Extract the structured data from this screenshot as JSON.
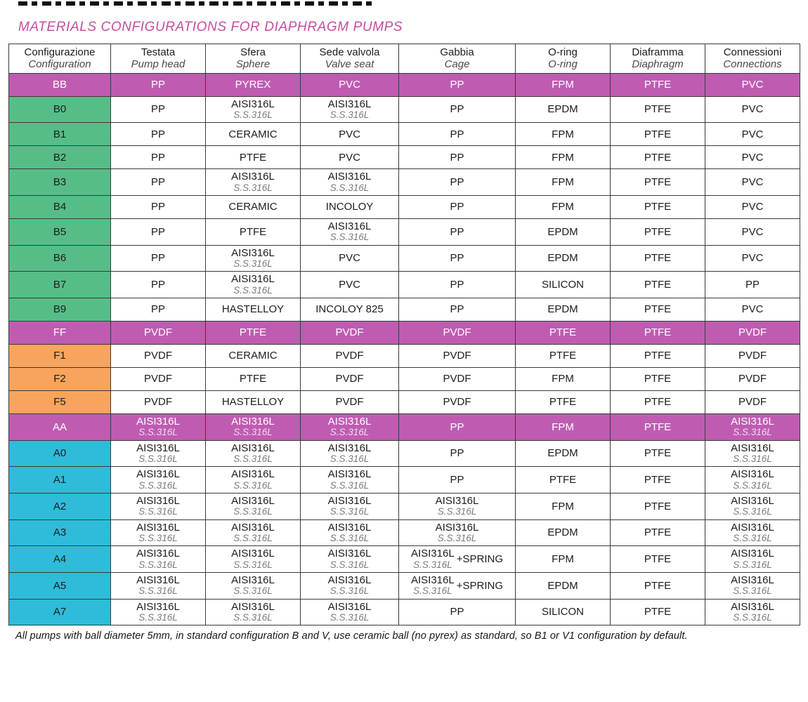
{
  "page": {
    "title": "MATERIALS CONFIGURATIONS FOR DIAPHRAGM PUMPS",
    "footnote": "All pumps with ball diameter 5mm, in standard configuration B and V, use ceramic ball (no pyrex) as standard, so B1 or V1 configuration by default."
  },
  "colors": {
    "magenta": "#bf5cb2",
    "green": "#57bd88",
    "orange": "#f8a45c",
    "cyan": "#2fbcd9",
    "title": "#c54da0"
  },
  "table": {
    "headers": [
      {
        "it": "Configurazione",
        "en": "Configuration"
      },
      {
        "it": "Testata",
        "en": "Pump head"
      },
      {
        "it": "Sfera",
        "en": "Sphere"
      },
      {
        "it": "Sede valvola",
        "en": "Valve seat"
      },
      {
        "it": "Gabbia",
        "en": "Cage"
      },
      {
        "it": "O-ring",
        "en": "O-ring"
      },
      {
        "it": "Diaframma",
        "en": "Diaphragm"
      },
      {
        "it": "Connessioni",
        "en": "Connections"
      }
    ],
    "rows": [
      {
        "code": "BB",
        "style": "magenta",
        "cells": [
          "PP",
          "PYREX",
          "PVC",
          "PP",
          "FPM",
          "PTFE",
          "PVC"
        ]
      },
      {
        "code": "B0",
        "style": "green",
        "cells": [
          "PP",
          {
            "main": "AISI316L",
            "sub": "S.S.316L"
          },
          {
            "main": "AISI316L",
            "sub": "S.S.316L"
          },
          "PP",
          "EPDM",
          "PTFE",
          "PVC"
        ]
      },
      {
        "code": "B1",
        "style": "green",
        "cells": [
          "PP",
          "CERAMIC",
          "PVC",
          "PP",
          "FPM",
          "PTFE",
          "PVC"
        ]
      },
      {
        "code": "B2",
        "style": "green",
        "cells": [
          "PP",
          "PTFE",
          "PVC",
          "PP",
          "FPM",
          "PTFE",
          "PVC"
        ]
      },
      {
        "code": "B3",
        "style": "green",
        "cells": [
          "PP",
          {
            "main": "AISI316L",
            "sub": "S.S.316L"
          },
          {
            "main": "AISI316L",
            "sub": "S.S.316L"
          },
          "PP",
          "FPM",
          "PTFE",
          "PVC"
        ]
      },
      {
        "code": "B4",
        "style": "green",
        "cells": [
          "PP",
          "CERAMIC",
          "INCOLOY",
          "PP",
          "FPM",
          "PTFE",
          "PVC"
        ]
      },
      {
        "code": "B5",
        "style": "green",
        "cells": [
          "PP",
          "PTFE",
          {
            "main": "AISI316L",
            "sub": "S.S.316L"
          },
          "PP",
          "EPDM",
          "PTFE",
          "PVC"
        ]
      },
      {
        "code": "B6",
        "style": "green",
        "cells": [
          "PP",
          {
            "main": "AISI316L",
            "sub": "S.S.316L"
          },
          "PVC",
          "PP",
          "EPDM",
          "PTFE",
          "PVC"
        ]
      },
      {
        "code": "B7",
        "style": "green",
        "cells": [
          "PP",
          {
            "main": "AISI316L",
            "sub": "S.S.316L"
          },
          "PVC",
          "PP",
          "SILICON",
          "PTFE",
          "PP"
        ]
      },
      {
        "code": "B9",
        "style": "green",
        "cells": [
          "PP",
          "HASTELLOY",
          "INCOLOY 825",
          "PP",
          "EPDM",
          "PTFE",
          "PVC"
        ]
      },
      {
        "code": "FF",
        "style": "magenta",
        "cells": [
          "PVDF",
          "PTFE",
          "PVDF",
          "PVDF",
          "PTFE",
          "PTFE",
          "PVDF"
        ]
      },
      {
        "code": "F1",
        "style": "orange",
        "cells": [
          "PVDF",
          "CERAMIC",
          "PVDF",
          "PVDF",
          "PTFE",
          "PTFE",
          "PVDF"
        ]
      },
      {
        "code": "F2",
        "style": "orange",
        "cells": [
          "PVDF",
          "PTFE",
          "PVDF",
          "PVDF",
          "FPM",
          "PTFE",
          "PVDF"
        ]
      },
      {
        "code": "F5",
        "style": "orange",
        "cells": [
          "PVDF",
          "HASTELLOY",
          "PVDF",
          "PVDF",
          "PTFE",
          "PTFE",
          "PVDF"
        ]
      },
      {
        "code": "AA",
        "style": "magenta",
        "cells": [
          {
            "main": "AISI316L",
            "sub": "S.S.316L"
          },
          {
            "main": "AISI316L",
            "sub": "S.S.316L"
          },
          {
            "main": "AISI316L",
            "sub": "S.S.316L"
          },
          "PP",
          "FPM",
          "PTFE",
          {
            "main": "AISI316L",
            "sub": "S.S.316L"
          }
        ]
      },
      {
        "code": "A0",
        "style": "cyan",
        "cells": [
          {
            "main": "AISI316L",
            "sub": "S.S.316L"
          },
          {
            "main": "AISI316L",
            "sub": "S.S.316L"
          },
          {
            "main": "AISI316L",
            "sub": "S.S.316L"
          },
          "PP",
          "EPDM",
          "PTFE",
          {
            "main": "AISI316L",
            "sub": "S.S.316L"
          }
        ]
      },
      {
        "code": "A1",
        "style": "cyan",
        "cells": [
          {
            "main": "AISI316L",
            "sub": "S.S.316L"
          },
          {
            "main": "AISI316L",
            "sub": "S.S.316L"
          },
          {
            "main": "AISI316L",
            "sub": "S.S.316L"
          },
          "PP",
          "PTFE",
          "PTFE",
          {
            "main": "AISI316L",
            "sub": "S.S.316L"
          }
        ]
      },
      {
        "code": "A2",
        "style": "cyan",
        "cells": [
          {
            "main": "AISI316L",
            "sub": "S.S.316L"
          },
          {
            "main": "AISI316L",
            "sub": "S.S.316L"
          },
          {
            "main": "AISI316L",
            "sub": "S.S.316L"
          },
          {
            "main": "AISI316L",
            "sub": "S.S.316L"
          },
          "FPM",
          "PTFE",
          {
            "main": "AISI316L",
            "sub": "S.S.316L"
          }
        ]
      },
      {
        "code": "A3",
        "style": "cyan",
        "cells": [
          {
            "main": "AISI316L",
            "sub": "S.S.316L"
          },
          {
            "main": "AISI316L",
            "sub": "S.S.316L"
          },
          {
            "main": "AISI316L",
            "sub": "S.S.316L"
          },
          {
            "main": "AISI316L",
            "sub": "S.S.316L"
          },
          "EPDM",
          "PTFE",
          {
            "main": "AISI316L",
            "sub": "S.S.316L"
          }
        ]
      },
      {
        "code": "A4",
        "style": "cyan",
        "cells": [
          {
            "main": "AISI316L",
            "sub": "S.S.316L"
          },
          {
            "main": "AISI316L",
            "sub": "S.S.316L"
          },
          {
            "main": "AISI316L",
            "sub": "S.S.316L"
          },
          {
            "main": "AISI316L",
            "sub": "S.S.316L",
            "suffix": "+SPRING"
          },
          "FPM",
          "PTFE",
          {
            "main": "AISI316L",
            "sub": "S.S.316L"
          }
        ]
      },
      {
        "code": "A5",
        "style": "cyan",
        "cells": [
          {
            "main": "AISI316L",
            "sub": "S.S.316L"
          },
          {
            "main": "AISI316L",
            "sub": "S.S.316L"
          },
          {
            "main": "AISI316L",
            "sub": "S.S.316L"
          },
          {
            "main": "AISI316L",
            "sub": "S.S.316L",
            "suffix": "+SPRING"
          },
          "EPDM",
          "PTFE",
          {
            "main": "AISI316L",
            "sub": "S.S.316L"
          }
        ]
      },
      {
        "code": "A7",
        "style": "cyan",
        "cells": [
          {
            "main": "AISI316L",
            "sub": "S.S.316L"
          },
          {
            "main": "AISI316L",
            "sub": "S.S.316L"
          },
          {
            "main": "AISI316L",
            "sub": "S.S.316L"
          },
          "PP",
          "SILICON",
          "PTFE",
          {
            "main": "AISI316L",
            "sub": "S.S.316L"
          }
        ]
      }
    ]
  }
}
